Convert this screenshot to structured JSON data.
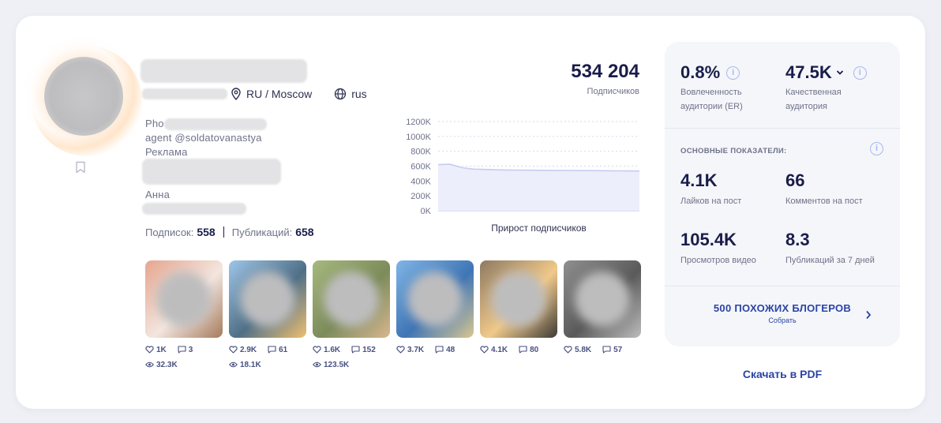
{
  "profile": {
    "location": "RU / Moscow",
    "language": "rus",
    "bio": {
      "line1": "Pho",
      "line2": "agent @soldatovanastya",
      "line3": "Реклама",
      "line5": "Анна"
    },
    "following_label": "Подписок:",
    "following_value": "558",
    "posts_label": "Публикаций:",
    "posts_value": "658"
  },
  "subscribers": {
    "value": "534 204",
    "label": "Подписчиков"
  },
  "chart_data": {
    "type": "area",
    "title": "Прирост подписчиков",
    "y_ticks": [
      "1200K",
      "1000K",
      "800K",
      "600K",
      "400K",
      "200K",
      "0K"
    ],
    "ylim": [
      0,
      1200000
    ],
    "series": [
      {
        "values": [
          620000,
          625000,
          580000,
          560000,
          555000,
          550000,
          548000,
          546000,
          545000,
          544000,
          543000,
          542000,
          541000,
          540000,
          538000,
          536000,
          535000,
          534204
        ]
      }
    ],
    "grid": true,
    "colors": {
      "line": "#c6ccf0",
      "fill": "#eceefb"
    }
  },
  "posts": [
    {
      "likes": "1K",
      "comments": "3",
      "views": "32.3K",
      "colors": [
        "#e6a58e",
        "#f3e6df",
        "#a57a5c"
      ]
    },
    {
      "likes": "2.9K",
      "comments": "61",
      "views": "18.1K",
      "colors": [
        "#9ec5e8",
        "#4f6f86",
        "#f0c070"
      ]
    },
    {
      "likes": "1.6K",
      "comments": "152",
      "views": "123.5K",
      "colors": [
        "#a6b97e",
        "#7c8b5a",
        "#d9b690"
      ]
    },
    {
      "likes": "3.7K",
      "comments": "48",
      "views": "",
      "colors": [
        "#7fb5e6",
        "#3f75b5",
        "#d9c790"
      ]
    },
    {
      "likes": "4.1K",
      "comments": "80",
      "views": "",
      "colors": [
        "#8e7a62",
        "#f0c98a",
        "#3e3a36"
      ]
    },
    {
      "likes": "5.8K",
      "comments": "57",
      "views": "",
      "colors": [
        "#8f8f8f",
        "#5a5a5a",
        "#bdbdbd"
      ]
    }
  ],
  "panel": {
    "er_value": "0.8%",
    "er_label_1": "Вовлеченность",
    "er_label_2": "аудитории (ER)",
    "qa_value": "47.5K",
    "qa_label_1": "Качественная",
    "qa_label_2": "аудитория",
    "section_title": "ОСНОВНЫЕ ПОКАЗАТЕЛИ:",
    "likes_value": "4.1K",
    "likes_label": "Лайков на пост",
    "comments_value": "66",
    "comments_label": "Комментов на пост",
    "video_value": "105.4K",
    "video_label": "Просмотров видео",
    "pubs_value": "8.3",
    "pubs_label": "Публикаций за 7 дней",
    "similar_title": "500 ПОХОЖИХ БЛОГЕРОВ",
    "similar_sub": "Собрать"
  },
  "pdf_label": "Скачать в PDF",
  "info_glyph": "i"
}
